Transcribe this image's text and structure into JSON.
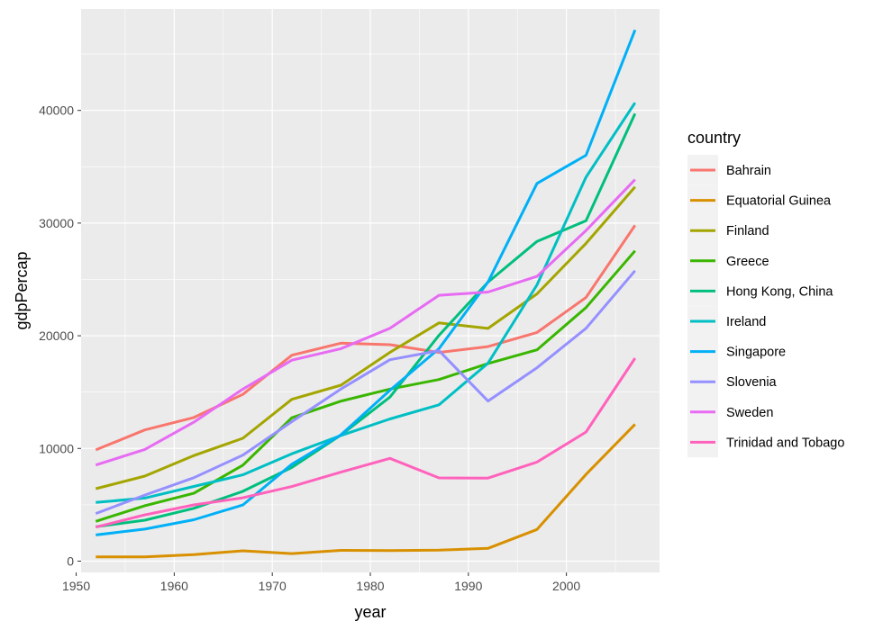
{
  "chart_data": {
    "type": "line",
    "xlabel": "year",
    "ylabel": "gdpPercap",
    "xlim": [
      1950.5,
      2009.5
    ],
    "ylim": [
      -1000,
      49000
    ],
    "x_ticks": [
      1950,
      1960,
      1970,
      1980,
      1990,
      2000
    ],
    "y_ticks": [
      0,
      10000,
      20000,
      30000,
      40000
    ],
    "x_tick_labels": [
      "1950",
      "1960",
      "1970",
      "1980",
      "1990",
      "2000"
    ],
    "y_tick_labels": [
      "0",
      "10000",
      "20000",
      "30000",
      "40000"
    ],
    "x": [
      1952,
      1957,
      1962,
      1967,
      1972,
      1977,
      1982,
      1987,
      1992,
      1997,
      2002,
      2007
    ],
    "grid": true,
    "legend_title": "country",
    "legend_position": "right",
    "panel_background": "#ebebeb",
    "series": [
      {
        "name": "Bahrain",
        "color": "#F8766D",
        "values": [
          9870,
          11640,
          12750,
          14800,
          18270,
          19340,
          19210,
          18520,
          19040,
          20290,
          23400,
          29800
        ]
      },
      {
        "name": "Equatorial Guinea",
        "color": "#D89000",
        "values": [
          380,
          380,
          580,
          920,
          670,
          960,
          930,
          970,
          1130,
          2810,
          7700,
          12150
        ]
      },
      {
        "name": "Finland",
        "color": "#A3A500",
        "values": [
          6430,
          7550,
          9370,
          10900,
          14360,
          15610,
          18530,
          21140,
          20650,
          23720,
          28200,
          33210
        ]
      },
      {
        "name": "Greece",
        "color": "#39B600",
        "values": [
          3530,
          4920,
          6020,
          8510,
          12720,
          14200,
          15270,
          16120,
          17540,
          18750,
          22510,
          27540
        ]
      },
      {
        "name": "Hong Kong, China",
        "color": "#00BF7D",
        "values": [
          3050,
          3630,
          4690,
          6200,
          8310,
          11190,
          14560,
          20040,
          24760,
          28380,
          30210,
          39720
        ]
      },
      {
        "name": "Ireland",
        "color": "#00BFC4",
        "values": [
          5210,
          5600,
          6630,
          7660,
          9530,
          11150,
          12620,
          13870,
          17560,
          24520,
          34080,
          40680
        ]
      },
      {
        "name": "Singapore",
        "color": "#00B0F6",
        "values": [
          2320,
          2840,
          3670,
          4980,
          8600,
          11210,
          15170,
          18860,
          24770,
          33520,
          36020,
          47140
        ]
      },
      {
        "name": "Slovenia",
        "color": "#9590FF",
        "values": [
          4220,
          5860,
          7400,
          9410,
          12380,
          15280,
          17870,
          18680,
          14210,
          17160,
          20660,
          25770
        ]
      },
      {
        "name": "Sweden",
        "color": "#E76BF3",
        "values": [
          8530,
          9910,
          12330,
          15260,
          17830,
          18860,
          20670,
          23590,
          23880,
          25270,
          29340,
          33860
        ]
      },
      {
        "name": "Trinidad and Tobago",
        "color": "#FF62BC",
        "values": [
          3020,
          4100,
          4990,
          5620,
          6620,
          7900,
          9120,
          7390,
          7370,
          8790,
          11460,
          18010
        ]
      }
    ]
  }
}
